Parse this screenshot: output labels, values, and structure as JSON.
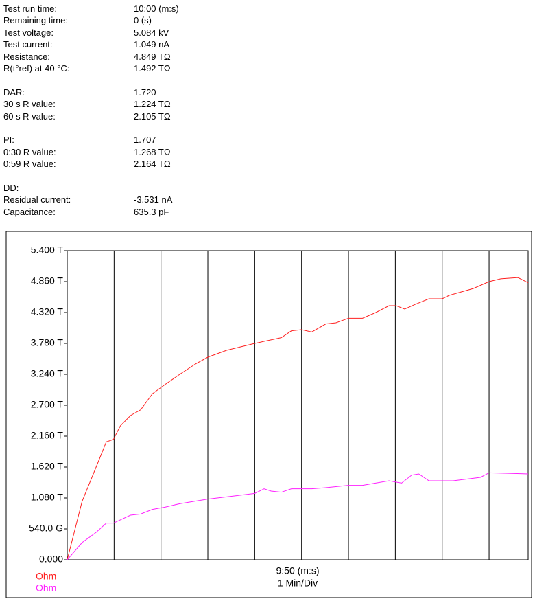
{
  "info": [
    [
      {
        "label": "Test run time:",
        "value": "10:00 (m:s)"
      },
      {
        "label": "Remaining time:",
        "value": "0 (s)"
      },
      {
        "label": "Test voltage:",
        "value": "5.084 kV"
      },
      {
        "label": "Test current:",
        "value": "1.049 nA"
      },
      {
        "label": "Resistance:",
        "value": "4.849 TΩ"
      },
      {
        "label": "R(t°ref) at 40 °C:",
        "value": "1.492 TΩ"
      }
    ],
    [
      {
        "label": "DAR:",
        "value": "1.720"
      },
      {
        "label": "30 s R value:",
        "value": "1.224 TΩ"
      },
      {
        "label": "60 s R value:",
        "value": "2.105 TΩ"
      }
    ],
    [
      {
        "label": "PI:",
        "value": "1.707"
      },
      {
        "label": "0:30 R value:",
        "value": "1.268 TΩ"
      },
      {
        "label": "0:59 R value:",
        "value": "2.164 TΩ"
      }
    ],
    [
      {
        "label": "DD:"
      },
      {
        "label": "Residual current:",
        "value": "-3.531 nA"
      },
      {
        "label": "Capacitance:",
        "value": "635.3 pF"
      }
    ]
  ],
  "chart_data": {
    "type": "line",
    "x_label": "9:50 (m:s)",
    "x_sublabel": "1 Min/Div",
    "xlim": [
      0,
      590
    ],
    "xticks": [
      60,
      120,
      180,
      240,
      300,
      360,
      420,
      480,
      540
    ],
    "ylim": [
      0,
      5.4
    ],
    "yticks": [
      {
        "value": 0,
        "label": "0.000"
      },
      {
        "value": 0.54,
        "label": "540.0 G"
      },
      {
        "value": 1.08,
        "label": "1.080 T"
      },
      {
        "value": 1.62,
        "label": "1.620 T"
      },
      {
        "value": 2.16,
        "label": "2.160 T"
      },
      {
        "value": 2.7,
        "label": "2.700 T"
      },
      {
        "value": 3.24,
        "label": "3.240 T"
      },
      {
        "value": 3.78,
        "label": "3.780 T"
      },
      {
        "value": 4.32,
        "label": "4.320 T"
      },
      {
        "value": 4.86,
        "label": "4.860 T"
      },
      {
        "value": 5.4,
        "label": "5.400 T"
      }
    ],
    "grid": true,
    "series": [
      {
        "name": "Ohm",
        "color": "#ff2020",
        "x": [
          0,
          19,
          37,
          50,
          59,
          68,
          81,
          94,
          109,
          125,
          144,
          164,
          180,
          204,
          240,
          274,
          287,
          300,
          313,
          331,
          344,
          360,
          378,
          395,
          412,
          421,
          432,
          445,
          463,
          480,
          489,
          520,
          540,
          555,
          577,
          590
        ],
        "values": [
          0,
          1.02,
          1.62,
          2.06,
          2.1,
          2.34,
          2.52,
          2.62,
          2.9,
          3.06,
          3.24,
          3.42,
          3.54,
          3.66,
          3.78,
          3.88,
          4.0,
          4.02,
          3.98,
          4.12,
          4.14,
          4.22,
          4.22,
          4.32,
          4.44,
          4.44,
          4.38,
          4.46,
          4.56,
          4.56,
          4.62,
          4.74,
          4.86,
          4.91,
          4.93,
          4.84
        ]
      },
      {
        "name": "Ohm",
        "color": "#ff20ff",
        "x": [
          0,
          19,
          37,
          50,
          59,
          81,
          94,
          109,
          125,
          144,
          180,
          204,
          240,
          252,
          261,
          274,
          287,
          313,
          331,
          360,
          378,
          412,
          428,
          441,
          450,
          463,
          494,
          529,
          540,
          590
        ],
        "values": [
          0,
          0.3,
          0.48,
          0.64,
          0.64,
          0.78,
          0.8,
          0.88,
          0.92,
          0.98,
          1.06,
          1.1,
          1.16,
          1.24,
          1.2,
          1.18,
          1.24,
          1.24,
          1.26,
          1.3,
          1.3,
          1.38,
          1.34,
          1.48,
          1.5,
          1.38,
          1.38,
          1.44,
          1.52,
          1.5
        ]
      }
    ]
  }
}
